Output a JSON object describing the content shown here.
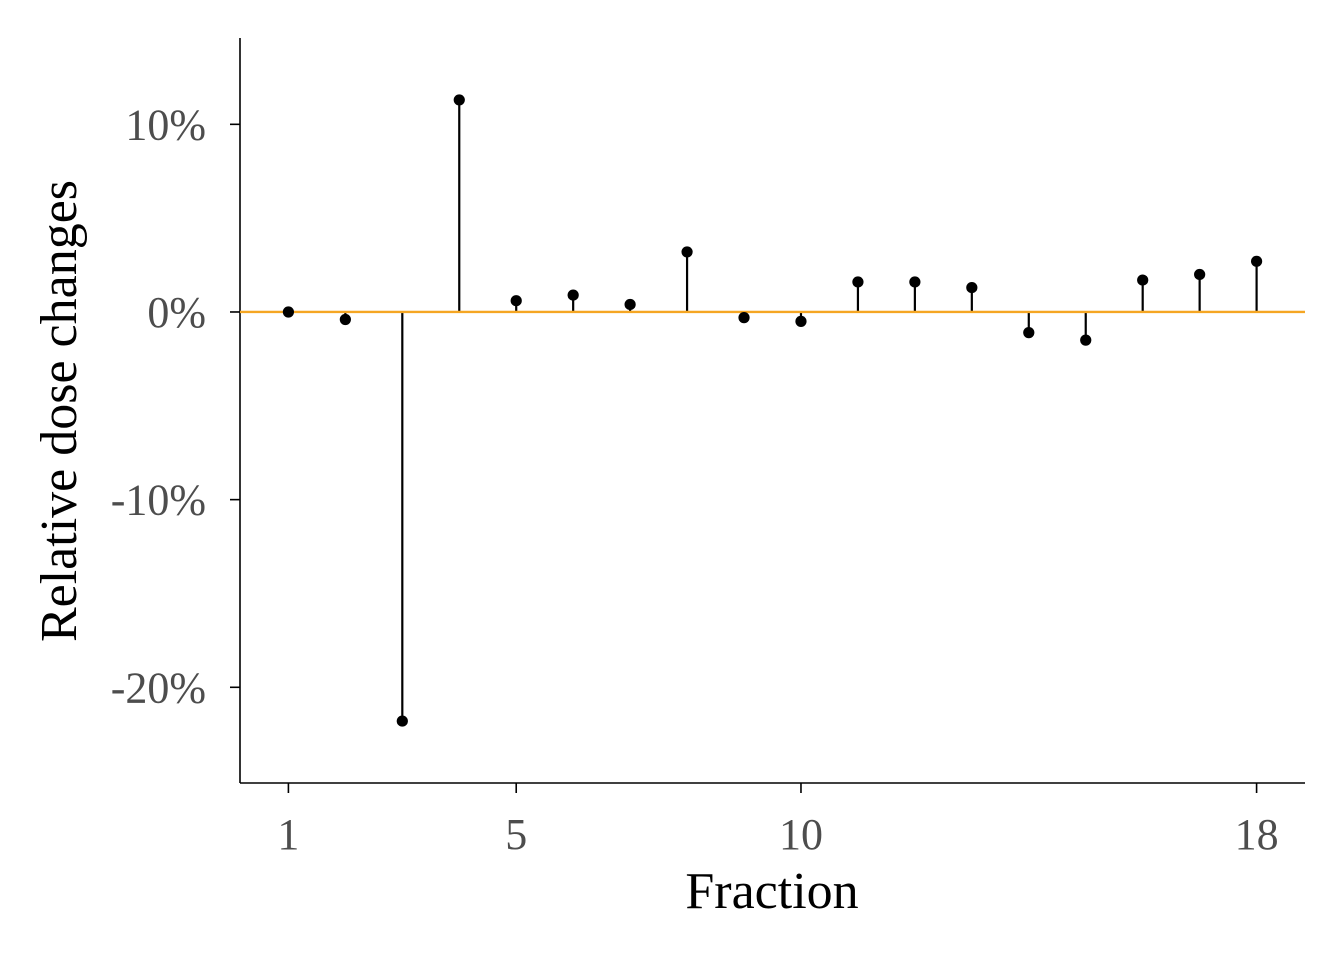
{
  "chart_data": {
    "type": "scatter",
    "style": "lollipop",
    "x": [
      1,
      2,
      3,
      4,
      5,
      6,
      7,
      8,
      9,
      10,
      11,
      12,
      13,
      14,
      15,
      16,
      17,
      18
    ],
    "y": [
      0.0,
      -0.4,
      -21.8,
      11.3,
      0.6,
      0.9,
      0.4,
      3.2,
      -0.3,
      -0.5,
      1.6,
      1.6,
      1.3,
      -1.1,
      -1.5,
      1.7,
      2.0,
      2.7
    ],
    "xlabel": "Fraction",
    "ylabel": "Relative dose changes",
    "xticks": [
      1,
      5,
      10,
      18
    ],
    "xtick_labels": [
      "1",
      "5",
      "10",
      "18"
    ],
    "yticks": [
      10,
      0,
      -10,
      -20
    ],
    "ytick_labels": [
      "10%",
      "0%",
      "-10%",
      "-20%"
    ],
    "xlim": [
      0.15,
      18.85
    ],
    "ylim": [
      -25.1,
      14.6
    ],
    "reference_line": {
      "y": 0,
      "color": "#f5a623"
    },
    "grid": false,
    "colors": {
      "points": "#000000",
      "stems": "#000000"
    }
  }
}
